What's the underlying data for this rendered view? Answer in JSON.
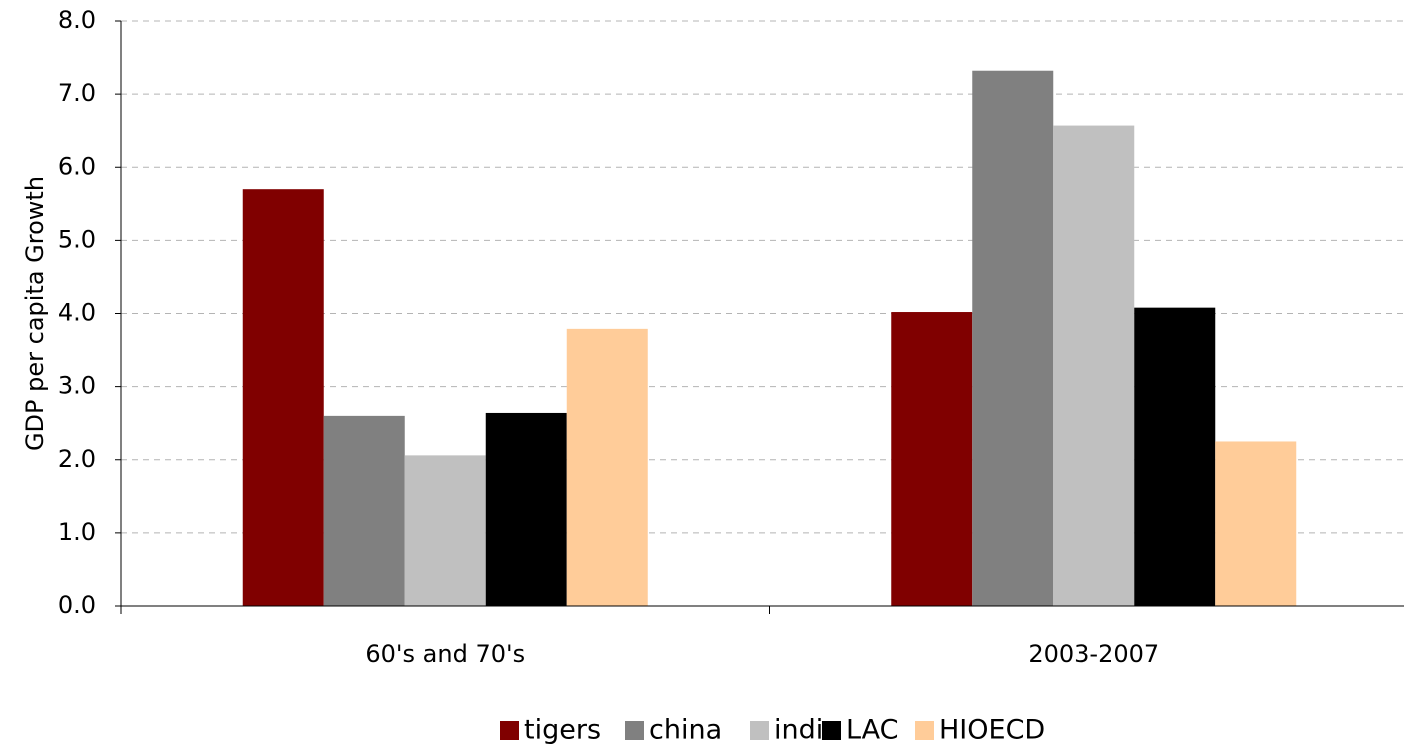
{
  "chart_data": {
    "type": "bar",
    "ylabel": "GDP per capita Growth",
    "xlabel": "",
    "ylim": [
      0,
      8
    ],
    "yticks": [
      "0.0",
      "1.0",
      "2.0",
      "3.0",
      "4.0",
      "5.0",
      "6.0",
      "7.0",
      "8.0"
    ],
    "grid": true,
    "legend_position": "bottom",
    "categories": [
      "60's and 70's",
      "2003-2007"
    ],
    "series": [
      {
        "name": "tigers",
        "color": "#800000",
        "values": [
          5.7,
          4.02
        ]
      },
      {
        "name": "china",
        "color": "#808080",
        "values": [
          2.6,
          7.32
        ]
      },
      {
        "name": "india",
        "color": "#c0c0c0",
        "values": [
          2.06,
          6.57
        ]
      },
      {
        "name": "LAC",
        "color": "#000000",
        "values": [
          2.64,
          4.08
        ]
      },
      {
        "name": "HIOECD",
        "color": "#ffcc99",
        "values": [
          3.79,
          2.25
        ]
      }
    ]
  }
}
